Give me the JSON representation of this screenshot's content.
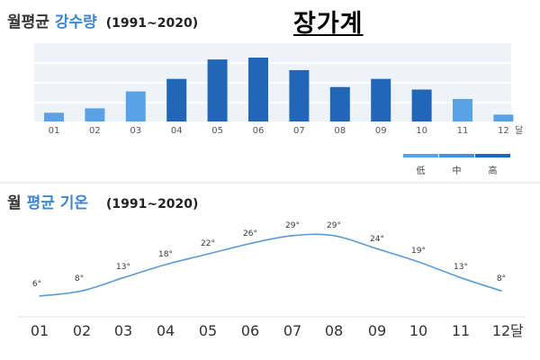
{
  "header": {
    "title1_prefix": "월평균",
    "title1_highlight": "강수량",
    "title1_period": "(1991~2020)",
    "region": "장가계",
    "title2_prefix": "월",
    "title2_highlight": "평균 기온",
    "title2_period": "(1991~2020)"
  },
  "chart_data": [
    {
      "type": "bar",
      "title": "월평균 강수량 (1991~2020)",
      "categories": [
        "01",
        "02",
        "03",
        "04",
        "05",
        "06",
        "07",
        "08",
        "09",
        "10",
        "11",
        "12"
      ],
      "x_unit": "달",
      "values": [
        14,
        21,
        48,
        68,
        99,
        102,
        82,
        55,
        68,
        51,
        36,
        11
      ],
      "value_levels": [
        "low",
        "low",
        "low",
        "high",
        "high",
        "high",
        "high",
        "high",
        "high",
        "high",
        "low",
        "low"
      ],
      "legend": {
        "placement": "bottom-right",
        "entries": [
          "低",
          "中",
          "高"
        ]
      },
      "colors": {
        "low": "#5aa2e6",
        "mid": "#4a90d9",
        "high": "#2266b8",
        "track": "#eef3fa",
        "grid": "#e6ecf3"
      },
      "grid": true
    },
    {
      "type": "line",
      "title": "월 평균 기온 (1991~2020)",
      "categories": [
        "01",
        "02",
        "03",
        "04",
        "05",
        "06",
        "07",
        "08",
        "09",
        "10",
        "11",
        "12"
      ],
      "x_unit": "달",
      "values": [
        6,
        8,
        13,
        18,
        22,
        26,
        29,
        29,
        24,
        19,
        13,
        8
      ],
      "value_labels": [
        "6°",
        "8°",
        "13°",
        "18°",
        "22°",
        "26°",
        "29°",
        "29°",
        "24°",
        "19°",
        "13°",
        "8°"
      ],
      "colors": {
        "line": "#5b9bd5",
        "baseline": "#e6e6e6"
      },
      "grid": false
    }
  ]
}
